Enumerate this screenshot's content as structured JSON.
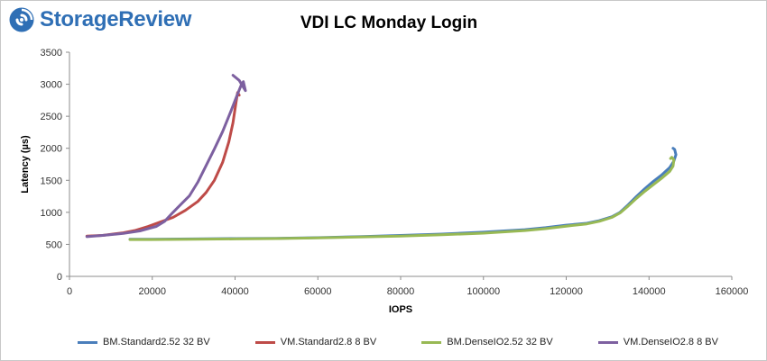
{
  "brand": {
    "name": "StorageReview"
  },
  "chart_data": {
    "type": "line",
    "title": "VDI LC Monday Login",
    "xlabel": "IOPS",
    "ylabel": "Latency (µs)",
    "xlim": [
      0,
      160000
    ],
    "ylim": [
      0,
      3500
    ],
    "xticks": [
      0,
      20000,
      40000,
      60000,
      80000,
      100000,
      120000,
      140000,
      160000
    ],
    "yticks": [
      0,
      500,
      1000,
      1500,
      2000,
      2500,
      3000,
      3500
    ],
    "grid": false,
    "legend_position": "bottom",
    "series": [
      {
        "name": "BM.Standard2.52 32 BV",
        "color": "#4a7ebb",
        "points": [
          [
            14600,
            580
          ],
          [
            20000,
            580
          ],
          [
            30000,
            585
          ],
          [
            40000,
            590
          ],
          [
            50000,
            595
          ],
          [
            60000,
            605
          ],
          [
            70000,
            620
          ],
          [
            80000,
            640
          ],
          [
            90000,
            660
          ],
          [
            100000,
            690
          ],
          [
            110000,
            730
          ],
          [
            115000,
            760
          ],
          [
            120000,
            800
          ],
          [
            125000,
            830
          ],
          [
            128000,
            870
          ],
          [
            131000,
            930
          ],
          [
            133000,
            1000
          ],
          [
            135000,
            1120
          ],
          [
            137000,
            1250
          ],
          [
            139000,
            1370
          ],
          [
            141000,
            1480
          ],
          [
            143000,
            1580
          ],
          [
            145000,
            1700
          ],
          [
            146000,
            1800
          ],
          [
            146500,
            1900
          ],
          [
            146200,
            1980
          ],
          [
            145800,
            2000
          ]
        ]
      },
      {
        "name": "VM.Standard2.8 8 BV",
        "color": "#be4b48",
        "points": [
          [
            4200,
            630
          ],
          [
            8000,
            640
          ],
          [
            13000,
            680
          ],
          [
            16000,
            720
          ],
          [
            19000,
            780
          ],
          [
            22000,
            850
          ],
          [
            25000,
            920
          ],
          [
            28000,
            1030
          ],
          [
            31000,
            1170
          ],
          [
            33000,
            1310
          ],
          [
            35000,
            1500
          ],
          [
            37000,
            1780
          ],
          [
            38500,
            2100
          ],
          [
            39500,
            2400
          ],
          [
            40200,
            2700
          ],
          [
            40600,
            2870
          ],
          [
            41000,
            2830
          ]
        ]
      },
      {
        "name": "BM.DenseIO2.52 32 BV",
        "color": "#98b954",
        "points": [
          [
            14600,
            575
          ],
          [
            20000,
            575
          ],
          [
            30000,
            580
          ],
          [
            40000,
            585
          ],
          [
            50000,
            590
          ],
          [
            60000,
            600
          ],
          [
            70000,
            615
          ],
          [
            80000,
            630
          ],
          [
            90000,
            650
          ],
          [
            100000,
            675
          ],
          [
            110000,
            715
          ],
          [
            115000,
            745
          ],
          [
            120000,
            785
          ],
          [
            125000,
            820
          ],
          [
            128000,
            860
          ],
          [
            131000,
            920
          ],
          [
            133000,
            990
          ],
          [
            135000,
            1100
          ],
          [
            137000,
            1220
          ],
          [
            139000,
            1330
          ],
          [
            141000,
            1430
          ],
          [
            143000,
            1530
          ],
          [
            145000,
            1640
          ],
          [
            145800,
            1720
          ],
          [
            146000,
            1820
          ],
          [
            145500,
            1860
          ],
          [
            145200,
            1840
          ]
        ]
      },
      {
        "name": "VM.DenseIO2.8 8 BV",
        "color": "#7d60a0",
        "points": [
          [
            4200,
            620
          ],
          [
            8000,
            640
          ],
          [
            13000,
            670
          ],
          [
            17000,
            710
          ],
          [
            21000,
            780
          ],
          [
            23000,
            860
          ],
          [
            25000,
            1000
          ],
          [
            27000,
            1130
          ],
          [
            29000,
            1260
          ],
          [
            31000,
            1470
          ],
          [
            33000,
            1730
          ],
          [
            35000,
            1990
          ],
          [
            37000,
            2260
          ],
          [
            39000,
            2580
          ],
          [
            40500,
            2830
          ],
          [
            41500,
            2990
          ],
          [
            42000,
            3040
          ],
          [
            42500,
            2900
          ],
          [
            41000,
            3060
          ],
          [
            39500,
            3140
          ]
        ]
      }
    ]
  }
}
